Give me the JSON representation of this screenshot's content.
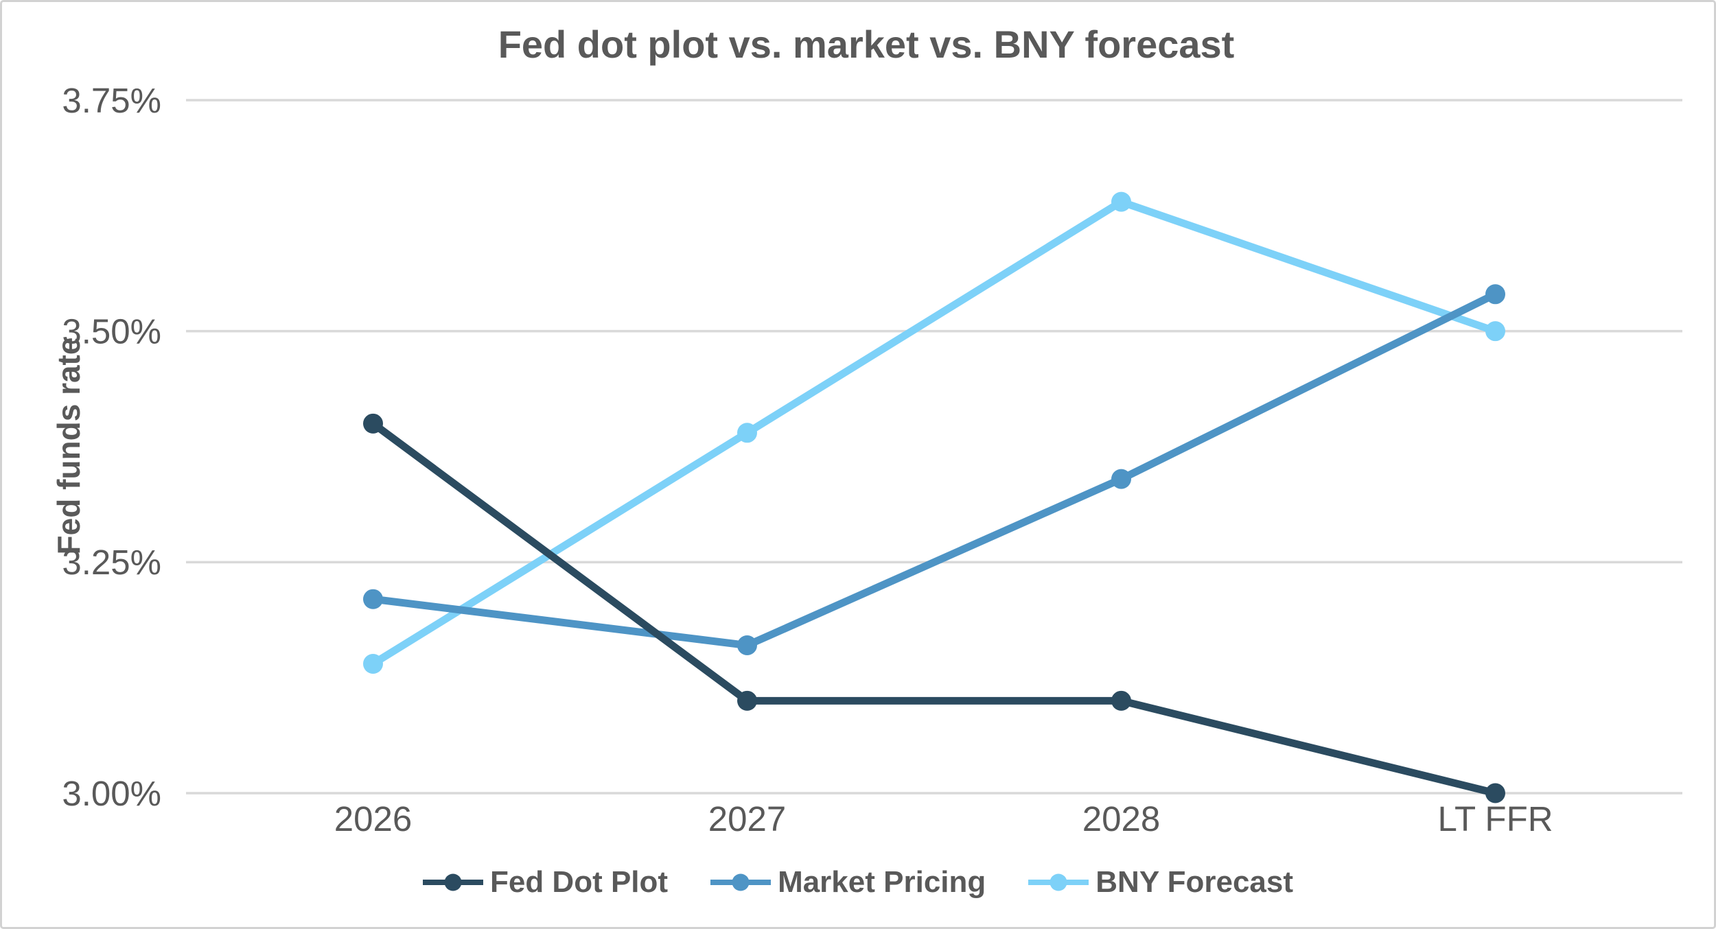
{
  "chart_data": {
    "type": "line",
    "title": "Fed dot plot vs. market vs. BNY forecast",
    "ylabel": "Fed funds rate",
    "xlabel": "",
    "categories": [
      "2026",
      "2027",
      "2028",
      "LT FFR"
    ],
    "series": [
      {
        "name": "Fed Dot Plot",
        "color": "#2B4B60",
        "values": [
          3.4,
          3.1,
          3.1,
          3.0
        ]
      },
      {
        "name": "Market Pricing",
        "color": "#4E94C5",
        "values": [
          3.21,
          3.16,
          3.34,
          3.54
        ]
      },
      {
        "name": "BNY Forecast",
        "color": "#7DD1F8",
        "values": [
          3.14,
          3.39,
          3.64,
          3.5
        ]
      }
    ],
    "ylim": [
      3.0,
      3.75
    ],
    "yticks": [
      {
        "value": 3.75,
        "label": "3.75%"
      },
      {
        "value": 3.5,
        "label": "3.50%"
      },
      {
        "value": 3.25,
        "label": "3.25%"
      },
      {
        "value": 3.0,
        "label": "3.00%"
      }
    ],
    "grid": "horizontal",
    "legend_position": "bottom",
    "colors": {
      "text": "#595959",
      "gridline": "#D9D9D9",
      "background": "#FFFFFF",
      "border": "#D2D2D2"
    }
  }
}
